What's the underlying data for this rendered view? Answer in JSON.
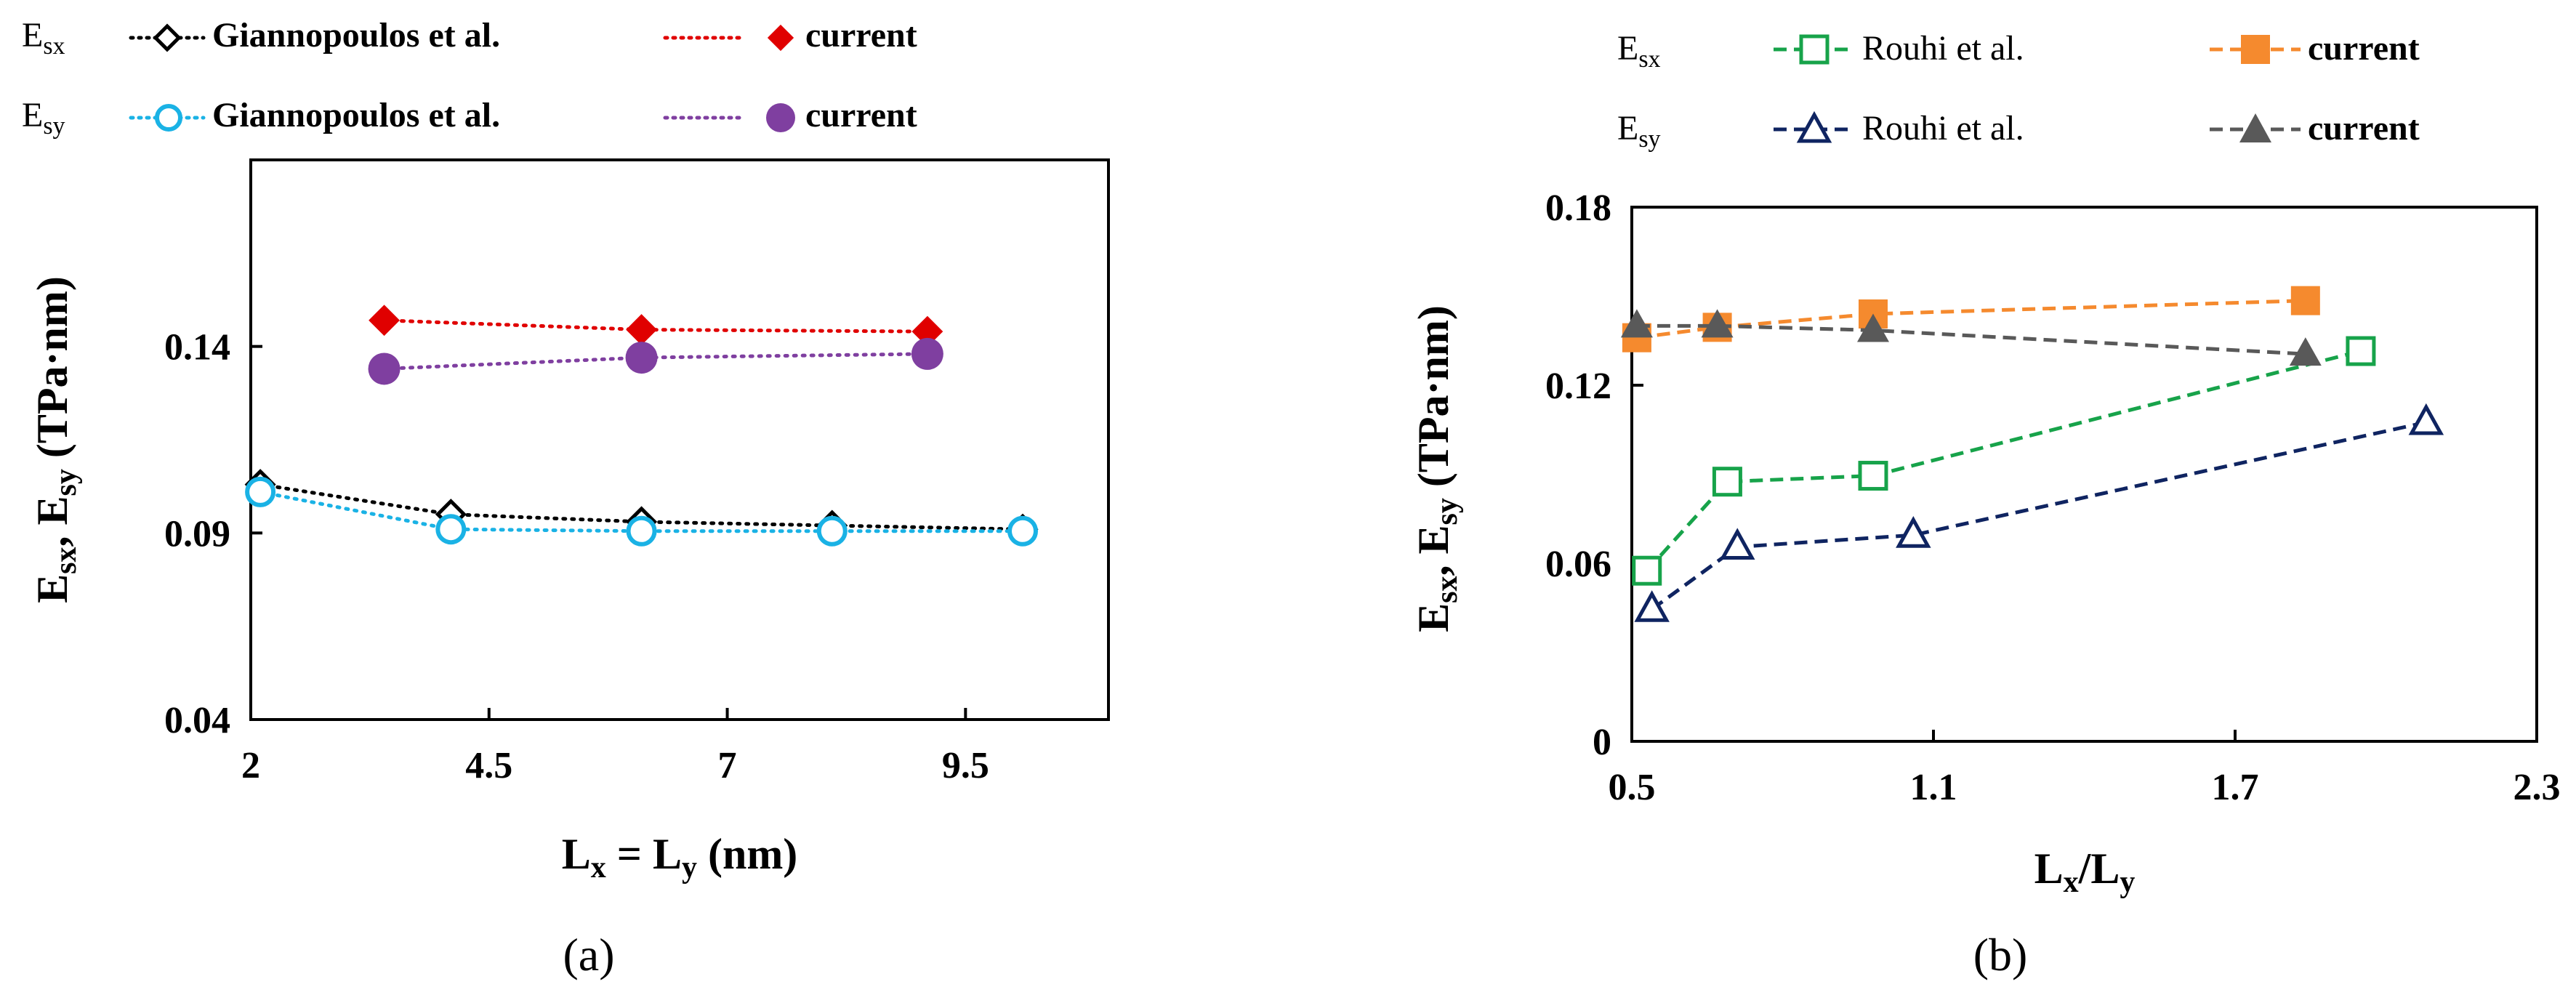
{
  "chart_data": [
    {
      "id": "a",
      "type": "line",
      "panel_label": "(a)",
      "xlabel": {
        "main": "L",
        "sub1": "x",
        "mid": " = L",
        "sub2": "y",
        "tail": " (nm)"
      },
      "ylabel": {
        "p1": "E",
        "s1": "sx",
        "p2": ", E",
        "s2": "sy",
        "tail": " (TPa·nm)"
      },
      "xlim": [
        2,
        11
      ],
      "ylim": [
        0.04,
        0.19
      ],
      "xticks": [
        2,
        4.5,
        7,
        9.5
      ],
      "xtick_labels": [
        "2",
        "4.5",
        "7",
        "9.5"
      ],
      "yticks": [
        0.04,
        0.09,
        0.14
      ],
      "ytick_labels": [
        "0.04",
        "0.09",
        "0.14"
      ],
      "legend_rows": [
        {
          "main": "E",
          "sub": "sx",
          "series": [
            0,
            2
          ]
        },
        {
          "main": "E",
          "sub": "sy",
          "series": [
            1,
            3
          ]
        }
      ],
      "series": [
        {
          "name": "Giannopoulos et al.",
          "group": "Esx",
          "color": "#000000",
          "marker": "diamond-open",
          "dash": "dotted",
          "x": [
            2.1,
            4.1,
            6.1,
            8.1,
            10.1
          ],
          "y": [
            0.103,
            0.095,
            0.093,
            0.092,
            0.091
          ]
        },
        {
          "name": "Giannopoulos et al.",
          "group": "Esy",
          "color": "#1ab2e5",
          "marker": "circle-open",
          "dash": "dotted",
          "x": [
            2.1,
            4.1,
            6.1,
            8.1,
            10.1
          ],
          "y": [
            0.101,
            0.091,
            0.0905,
            0.0905,
            0.0905
          ]
        },
        {
          "name": "current",
          "group": "Esx",
          "color": "#e00000",
          "marker": "diamond",
          "dash": "dotted",
          "x": [
            3.4,
            6.1,
            9.1
          ],
          "y": [
            0.147,
            0.1445,
            0.144
          ]
        },
        {
          "name": "current",
          "group": "Esy",
          "color": "#7f3fa0",
          "marker": "circle",
          "dash": "dotted",
          "x": [
            3.4,
            6.1,
            9.1
          ],
          "y": [
            0.134,
            0.137,
            0.138
          ]
        }
      ]
    },
    {
      "id": "b",
      "type": "line",
      "panel_label": "(b)",
      "xlabel": {
        "main": "L",
        "sub1": "x",
        "mid": "/L",
        "sub2": "y",
        "tail": ""
      },
      "ylabel": {
        "p1": "E",
        "s1": "sx",
        "p2": ", E",
        "s2": "sy",
        "tail": " (TPa·nm)"
      },
      "xlim": [
        0.5,
        2.3
      ],
      "ylim": [
        0,
        0.18
      ],
      "xticks": [
        0.5,
        1.1,
        1.7,
        2.3
      ],
      "xtick_labels": [
        "0.5",
        "1.1",
        "1.7",
        "2.3"
      ],
      "yticks": [
        0,
        0.06,
        0.12,
        0.18
      ],
      "ytick_labels": [
        "0",
        "0.06",
        "0.12",
        "0.18"
      ],
      "legend_rows": [
        {
          "main": "E",
          "sub": "sx",
          "series": [
            0,
            2
          ]
        },
        {
          "main": "E",
          "sub": "sy",
          "series": [
            1,
            3
          ]
        }
      ],
      "series": [
        {
          "name": "Rouhi et al.",
          "group": "Esx",
          "color": "#17a34a",
          "marker": "square-open",
          "dash": "dashed",
          "x": [
            0.53,
            0.69,
            0.98,
            1.95
          ],
          "y": [
            0.0575,
            0.0875,
            0.0895,
            0.1315
          ]
        },
        {
          "name": "Rouhi et al.",
          "group": "Esy",
          "color": "#0f2461",
          "marker": "triangle-open",
          "dash": "dashed",
          "x": [
            0.54,
            0.71,
            1.06,
            2.08
          ],
          "y": [
            0.0445,
            0.0655,
            0.0695,
            0.1075
          ]
        },
        {
          "name": "current",
          "group": "Esx",
          "color": "#f58a2e",
          "marker": "square",
          "dash": "dashed",
          "x": [
            0.51,
            0.67,
            0.98,
            1.84
          ],
          "y": [
            0.136,
            0.1395,
            0.144,
            0.1485
          ]
        },
        {
          "name": "current",
          "group": "Esy",
          "color": "#595959",
          "marker": "triangle",
          "dash": "dashed",
          "x": [
            0.51,
            0.67,
            0.98,
            1.84
          ],
          "y": [
            0.14,
            0.14,
            0.1385,
            0.1305
          ]
        }
      ]
    }
  ]
}
